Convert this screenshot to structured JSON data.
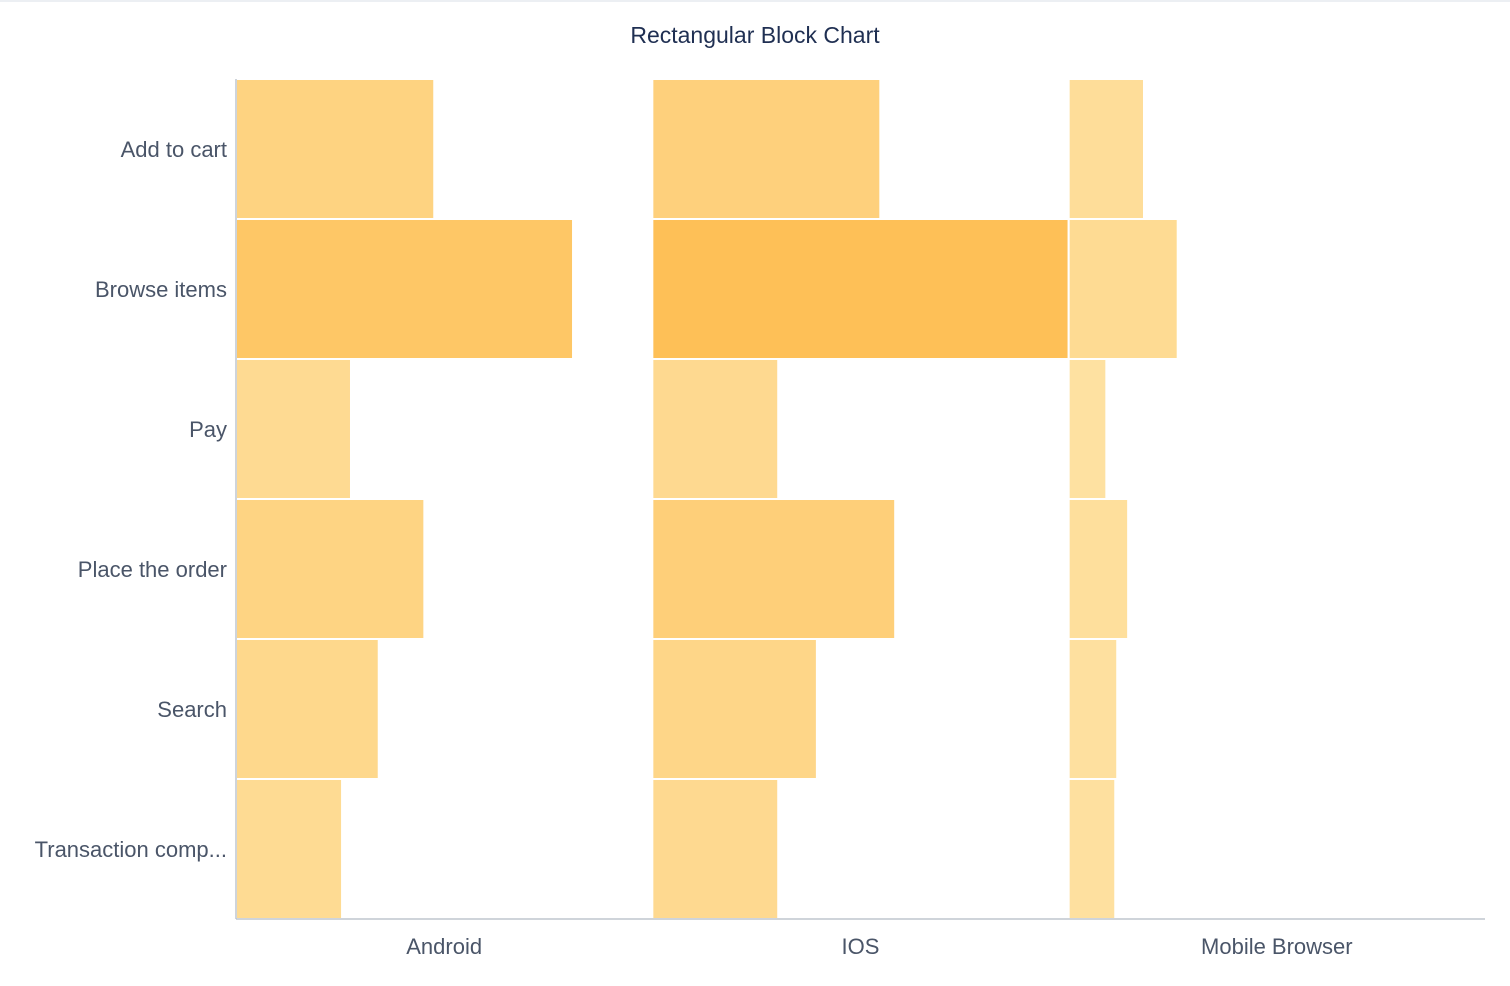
{
  "title": "Rectangular Block Chart",
  "chart_data": {
    "type": "bar",
    "title": "Rectangular Block Chart",
    "layout": "block-grid",
    "orientation": "horizontal",
    "columns": [
      "Android",
      "IOS",
      "Mobile Browser"
    ],
    "categories": [
      "Add to cart",
      "Browse items",
      "Pay",
      "Place the order",
      "Search",
      "Transaction comp..."
    ],
    "series": [
      {
        "name": "Android",
        "values": [
          20,
          34,
          11.6,
          19,
          14.4,
          10.7
        ]
      },
      {
        "name": "IOS",
        "values": [
          23,
          42,
          12.7,
          24.5,
          16.6,
          12.7
        ]
      },
      {
        "name": "Mobile Browser",
        "values": [
          7.6,
          11,
          3.8,
          6,
          4.9,
          4.7
        ]
      }
    ],
    "max_value": 42,
    "colors": {
      "light": "#fee4a8",
      "dark": "#fec057",
      "axis": "#bfc5cd",
      "separator": "#ffffff"
    },
    "grid": false,
    "legend": "none"
  }
}
